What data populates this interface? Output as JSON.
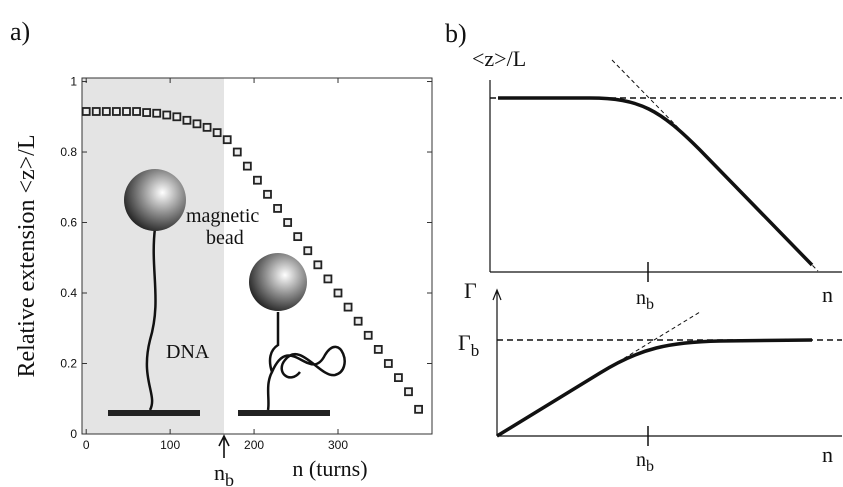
{
  "chart_data": {
    "type": "scatter",
    "panel_label": "a)",
    "x_label": "n (turns)",
    "y_label": "Relative extension <z>/L",
    "marker_label": {
      "base": "n",
      "sub": "b"
    },
    "annotations": [
      "magnetic",
      "bead",
      "DNA"
    ],
    "x": [
      0,
      12,
      24,
      36,
      48,
      60,
      72,
      84,
      96,
      108,
      120,
      132,
      144,
      156,
      168,
      180,
      192,
      204,
      216,
      228,
      240,
      252,
      264,
      276,
      288,
      300,
      312,
      324,
      336,
      348,
      360,
      372,
      384,
      396
    ],
    "values": [
      0.915,
      0.915,
      0.915,
      0.915,
      0.915,
      0.915,
      0.912,
      0.91,
      0.905,
      0.9,
      0.89,
      0.88,
      0.87,
      0.855,
      0.835,
      0.8,
      0.76,
      0.72,
      0.68,
      0.64,
      0.6,
      0.56,
      0.52,
      0.48,
      0.44,
      0.4,
      0.36,
      0.32,
      0.28,
      0.24,
      0.2,
      0.16,
      0.12,
      0.07
    ],
    "xlim": [
      -5,
      412
    ],
    "ylim": [
      0,
      1.01
    ],
    "xticks": [
      0,
      100,
      200,
      300
    ],
    "yticks": [
      0,
      0.2,
      0.4,
      0.6,
      0.8,
      1
    ]
  },
  "schematic": {
    "panel_label": "b)",
    "top": {
      "y_label": "<z>/L",
      "x_mark": {
        "base": "n",
        "sub": "b"
      },
      "x_label": "n"
    },
    "bottom": {
      "y_label": "Γ",
      "level_label": {
        "base": "Γ",
        "sub": "b"
      },
      "x_mark": {
        "base": "n",
        "sub": "b"
      },
      "x_label": "n"
    }
  }
}
